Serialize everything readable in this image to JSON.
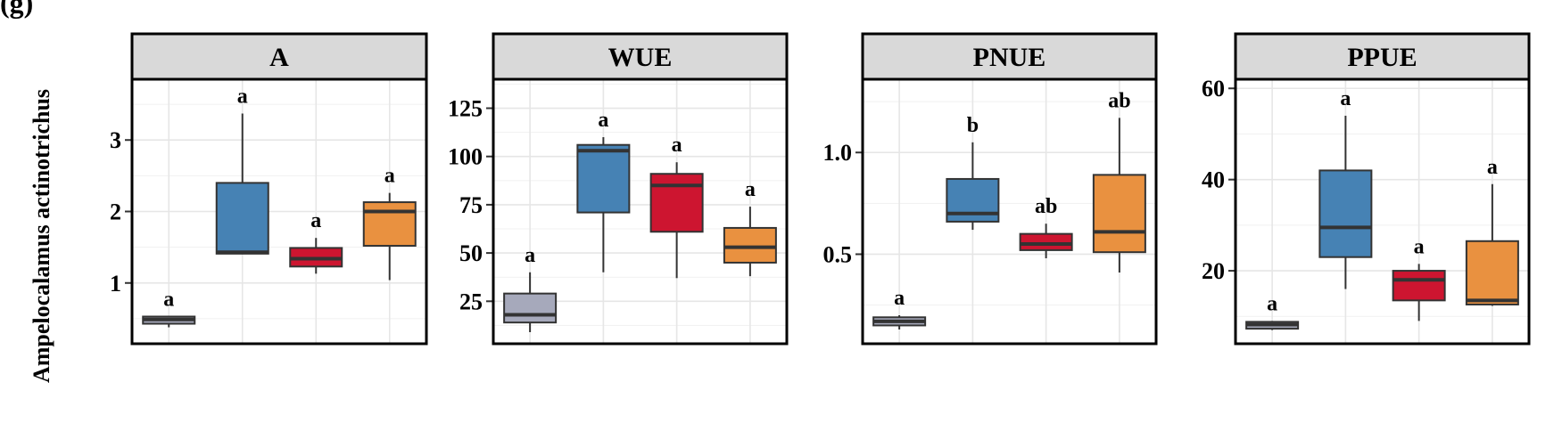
{
  "figure": {
    "panel_tag": "(g)",
    "ylabel": "Ampelocalamus actinotrichus"
  },
  "chart_data": [
    {
      "type": "box",
      "title": "A",
      "ylim": [
        0.15,
        3.85
      ],
      "yticks": [
        1,
        2,
        3
      ],
      "tick_labels": [
        "1",
        "2",
        "3"
      ],
      "colors": [
        "#a6a9bb",
        "#4682b4",
        "#cd1530",
        "#e99140"
      ],
      "groups": [
        {
          "whisker_low": 0.38,
          "q1": 0.43,
          "median": 0.49,
          "q3": 0.53,
          "whisker_high": 0.53,
          "letter": "a"
        },
        {
          "whisker_low": 1.41,
          "q1": 1.41,
          "median": 1.43,
          "q3": 2.4,
          "whisker_high": 3.37,
          "letter": "a"
        },
        {
          "whisker_low": 1.13,
          "q1": 1.23,
          "median": 1.34,
          "q3": 1.49,
          "whisker_high": 1.63,
          "letter": "a"
        },
        {
          "whisker_low": 1.04,
          "q1": 1.52,
          "median": 2.0,
          "q3": 2.13,
          "whisker_high": 2.26,
          "letter": "a"
        }
      ]
    },
    {
      "type": "box",
      "title": "WUE",
      "ylim": [
        3,
        140
      ],
      "yticks": [
        25,
        50,
        75,
        100,
        125
      ],
      "tick_labels": [
        "25",
        "50",
        "75",
        "100",
        "125"
      ],
      "colors": [
        "#a6a9bb",
        "#4682b4",
        "#cd1530",
        "#e99140"
      ],
      "groups": [
        {
          "whisker_low": 9,
          "q1": 14,
          "median": 18,
          "q3": 29,
          "whisker_high": 40,
          "letter": "a"
        },
        {
          "whisker_low": 40,
          "q1": 71,
          "median": 103,
          "q3": 106,
          "whisker_high": 110,
          "letter": "a"
        },
        {
          "whisker_low": 37,
          "q1": 61,
          "median": 85,
          "q3": 91,
          "whisker_high": 97,
          "letter": "a"
        },
        {
          "whisker_low": 38,
          "q1": 45,
          "median": 53,
          "q3": 63,
          "whisker_high": 74,
          "letter": "a"
        }
      ]
    },
    {
      "type": "box",
      "title": "PNUE",
      "ylim": [
        0.06,
        1.36
      ],
      "yticks": [
        0.5,
        1.0
      ],
      "tick_labels": [
        "0.5",
        "1.0"
      ],
      "colors": [
        "#a6a9bb",
        "#4682b4",
        "#cd1530",
        "#e99140"
      ],
      "groups": [
        {
          "whisker_low": 0.13,
          "q1": 0.15,
          "median": 0.17,
          "q3": 0.19,
          "whisker_high": 0.2,
          "letter": "a"
        },
        {
          "whisker_low": 0.62,
          "q1": 0.66,
          "median": 0.7,
          "q3": 0.87,
          "whisker_high": 1.05,
          "letter": "b"
        },
        {
          "whisker_low": 0.48,
          "q1": 0.52,
          "median": 0.55,
          "q3": 0.6,
          "whisker_high": 0.65,
          "letter": "ab"
        },
        {
          "whisker_low": 0.41,
          "q1": 0.51,
          "median": 0.61,
          "q3": 0.89,
          "whisker_high": 1.17,
          "letter": "ab"
        }
      ]
    },
    {
      "type": "box",
      "title": "PPUE",
      "ylim": [
        4,
        62
      ],
      "yticks": [
        20,
        40,
        60
      ],
      "tick_labels": [
        "20",
        "40",
        "60"
      ],
      "colors": [
        "#a6a9bb",
        "#4682b4",
        "#cd1530",
        "#e99140"
      ],
      "groups": [
        {
          "whisker_low": 7,
          "q1": 7.3,
          "median": 8.2,
          "q3": 8.8,
          "whisker_high": 9,
          "letter": "a"
        },
        {
          "whisker_low": 16,
          "q1": 23,
          "median": 29.5,
          "q3": 42,
          "whisker_high": 54,
          "letter": "a"
        },
        {
          "whisker_low": 9,
          "q1": 13.5,
          "median": 18,
          "q3": 20,
          "whisker_high": 21.5,
          "letter": "a"
        },
        {
          "whisker_low": 12.3,
          "q1": 12.6,
          "median": 13.5,
          "q3": 26.5,
          "whisker_high": 39,
          "letter": "a"
        }
      ]
    }
  ]
}
